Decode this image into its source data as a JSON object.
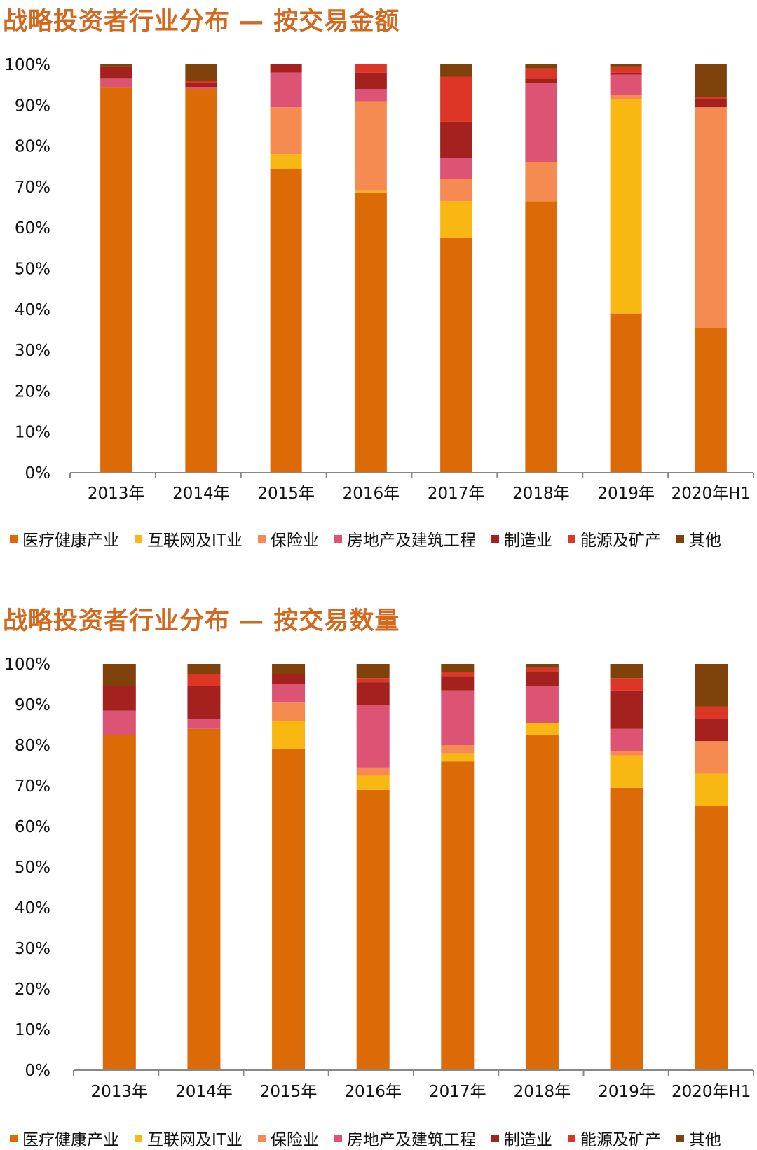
{
  "charts": [
    {
      "title": "战略投资者行业分布 — 按交易金额"
    },
    {
      "title": "战略投资者行业分布 — 按交易数量"
    }
  ],
  "legend_labels": [
    "医疗健康产业",
    "互联网及IT业",
    "保险业",
    "房地产及建筑工程",
    "制造业",
    "能源及矿产",
    "其他"
  ],
  "chart_data": [
    {
      "type": "bar",
      "stacked": true,
      "title": "战略投资者行业分布 — 按交易金额",
      "categories": [
        "2013年",
        "2014年",
        "2015年",
        "2016年",
        "2017年",
        "2018年",
        "2019年",
        "2020年H1"
      ],
      "yticks": [
        "0%",
        "10%",
        "20%",
        "30%",
        "40%",
        "50%",
        "60%",
        "70%",
        "80%",
        "90%",
        "100%"
      ],
      "ylim": [
        0,
        100
      ],
      "legend_position": "bottom",
      "series": [
        {
          "name": "医疗健康产业",
          "color": "#dc6a06",
          "values": [
            94.5,
            94.0,
            74.5,
            68.5,
            57.5,
            66.5,
            39.0,
            35.5
          ]
        },
        {
          "name": "互联网及IT业",
          "color": "#f9b811",
          "values": [
            0,
            0,
            3.5,
            0.5,
            9.0,
            0,
            52.5,
            0
          ]
        },
        {
          "name": "保险业",
          "color": "#f68b52",
          "values": [
            0,
            0,
            11.5,
            22.0,
            5.5,
            9.5,
            1.0,
            54.0
          ]
        },
        {
          "name": "房地产及建筑工程",
          "color": "#dc5373",
          "values": [
            2.0,
            0.5,
            8.5,
            3.0,
            5.0,
            19.5,
            5.0,
            0
          ]
        },
        {
          "name": "制造业",
          "color": "#a4211e",
          "values": [
            3.0,
            1.0,
            2.0,
            4.0,
            9.0,
            1.0,
            0.5,
            2.0
          ]
        },
        {
          "name": "能源及矿产",
          "color": "#de3626",
          "values": [
            0,
            0.5,
            0,
            2.0,
            11.0,
            2.5,
            1.5,
            0.5
          ]
        },
        {
          "name": "其他",
          "color": "#7e420a",
          "values": [
            0.5,
            4.0,
            0,
            0,
            3.0,
            1.0,
            0.5,
            8.0
          ]
        }
      ]
    },
    {
      "type": "bar",
      "stacked": true,
      "title": "战略投资者行业分布 — 按交易数量",
      "categories": [
        "2013年",
        "2014年",
        "2015年",
        "2016年",
        "2017年",
        "2018年",
        "2019年",
        "2020年H1"
      ],
      "yticks": [
        "0%",
        "10%",
        "20%",
        "30%",
        "40%",
        "50%",
        "60%",
        "70%",
        "80%",
        "90%",
        "100%"
      ],
      "ylim": [
        0,
        100
      ],
      "legend_position": "bottom",
      "series": [
        {
          "name": "医疗健康产业",
          "color": "#dc6a06",
          "values": [
            82.5,
            84.0,
            79.0,
            69.0,
            76.0,
            82.5,
            69.5,
            65.0
          ]
        },
        {
          "name": "互联网及IT业",
          "color": "#f9b811",
          "values": [
            0,
            0,
            7.0,
            3.5,
            2.0,
            3.0,
            8.0,
            8.0
          ]
        },
        {
          "name": "保险业",
          "color": "#f68b52",
          "values": [
            0,
            0,
            4.5,
            2.0,
            2.0,
            0,
            1.0,
            8.0
          ]
        },
        {
          "name": "房地产及建筑工程",
          "color": "#dc5373",
          "values": [
            6.0,
            2.5,
            4.5,
            15.5,
            13.5,
            9.0,
            5.5,
            0
          ]
        },
        {
          "name": "制造业",
          "color": "#a4211e",
          "values": [
            6.0,
            8.0,
            2.5,
            5.5,
            3.5,
            3.5,
            9.5,
            5.5
          ]
        },
        {
          "name": "能源及矿产",
          "color": "#de3626",
          "values": [
            0,
            3.0,
            0,
            1.0,
            1.0,
            1.0,
            3.0,
            3.0
          ]
        },
        {
          "name": "其他",
          "color": "#7e420a",
          "values": [
            5.5,
            2.5,
            2.5,
            3.5,
            2.0,
            1.0,
            3.5,
            10.5
          ]
        }
      ]
    }
  ]
}
